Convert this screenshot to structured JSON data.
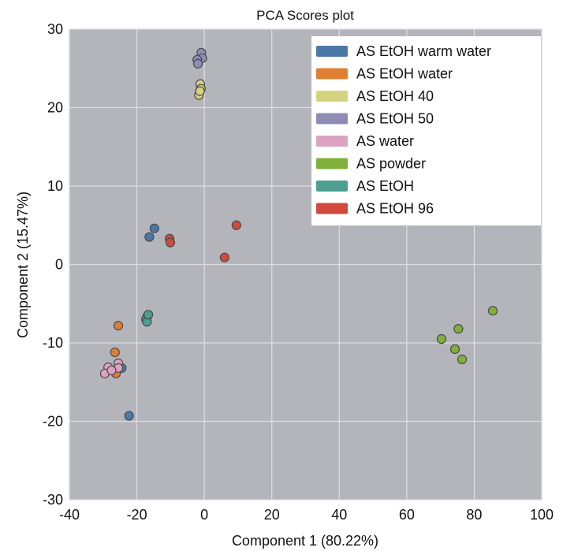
{
  "chart_data": {
    "type": "scatter",
    "title": "PCA Scores plot",
    "xlabel": "Component 1 (80.22%)",
    "ylabel": "Component 2 (15.47%)",
    "xlim": [
      -40,
      100
    ],
    "ylim": [
      -30,
      30
    ],
    "xticks": [
      -40,
      -20,
      0,
      20,
      40,
      60,
      80,
      100
    ],
    "yticks": [
      -30,
      -20,
      -10,
      0,
      10,
      20,
      30
    ],
    "grid": true,
    "legend_position": "top-right",
    "colors": {
      "plot_background": "#b4b4bb",
      "grid": "#dcdce0",
      "legend_background": "#ffffff"
    },
    "series": [
      {
        "name": "AS EtOH warm water",
        "color": "#4c78a8",
        "points": [
          [
            -14.8,
            4.6
          ],
          [
            -16.3,
            3.5
          ],
          [
            -24.5,
            -13.2
          ],
          [
            -22.3,
            -19.3
          ]
        ]
      },
      {
        "name": "AS EtOH water",
        "color": "#dd8033",
        "points": [
          [
            -25.5,
            -7.8
          ],
          [
            -26.5,
            -11.2
          ],
          [
            -26.2,
            -13.9
          ]
        ]
      },
      {
        "name": "AS EtOH 40",
        "color": "#d4d47e",
        "points": [
          [
            -1.2,
            23.0
          ],
          [
            -1.0,
            22.4
          ],
          [
            -1.6,
            21.6
          ],
          [
            -1.3,
            22.1
          ]
        ]
      },
      {
        "name": "AS EtOH 50",
        "color": "#8e8cb4",
        "points": [
          [
            -0.9,
            27.0
          ],
          [
            -0.6,
            26.3
          ],
          [
            -2.1,
            26.1
          ],
          [
            -1.9,
            25.6
          ]
        ]
      },
      {
        "name": "AS water",
        "color": "#dca2c2",
        "points": [
          [
            -28.5,
            -13.1
          ],
          [
            -29.5,
            -13.9
          ],
          [
            -25.5,
            -12.6
          ],
          [
            -25.5,
            -13.2
          ],
          [
            -27.5,
            -13.5
          ]
        ]
      },
      {
        "name": "AS powder",
        "color": "#7fb13a",
        "points": [
          [
            85.5,
            -5.9
          ],
          [
            75.3,
            -8.2
          ],
          [
            70.3,
            -9.5
          ],
          [
            74.3,
            -10.8
          ],
          [
            76.4,
            -12.1
          ]
        ]
      },
      {
        "name": "AS EtOH",
        "color": "#4e9e92",
        "points": [
          [
            -17.0,
            -6.7
          ],
          [
            -17.3,
            -7.0
          ],
          [
            -17.0,
            -7.3
          ],
          [
            -16.6,
            -6.4
          ]
        ]
      },
      {
        "name": "AS EtOH 96",
        "color": "#d24a3e",
        "points": [
          [
            -10.3,
            3.3
          ],
          [
            -10.1,
            2.8
          ],
          [
            9.5,
            5.0
          ],
          [
            6.0,
            0.9
          ]
        ]
      }
    ]
  }
}
